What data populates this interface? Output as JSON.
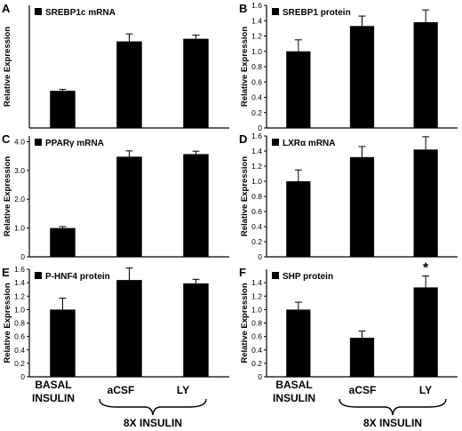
{
  "figure": {
    "bottom_labels": {
      "basal_line1": "BASAL",
      "basal_line2": "INSULIN",
      "acsf": "aCSF",
      "ly": "LY",
      "group": "8X INSULIN"
    }
  },
  "chart_data": [
    {
      "panel": "A",
      "type": "bar",
      "legend": "SREBP1c mRNA",
      "categories": [
        "BASAL INSULIN",
        "aCSF",
        "LY"
      ],
      "values": [
        1.0,
        2.33,
        2.4
      ],
      "errors": [
        0.04,
        0.2,
        0.1
      ],
      "ylabel": "Relative Expression",
      "ylim": [
        0,
        3.3
      ],
      "yticks": [],
      "bar_color": "#000000",
      "annotations": []
    },
    {
      "panel": "B",
      "type": "bar",
      "legend": "SREBP1 protein",
      "categories": [
        "BASAL INSULIN",
        "aCSF",
        "LY"
      ],
      "values": [
        1.0,
        1.33,
        1.38
      ],
      "errors": [
        0.15,
        0.13,
        0.16
      ],
      "ylabel": "Relative Expression",
      "ylim": [
        0,
        1.6
      ],
      "yticks": [
        "0",
        "0.2",
        "0.4",
        "0.6",
        "0.8",
        "1.0",
        "1.2",
        "1.4",
        "1.6"
      ],
      "bar_color": "#000000",
      "annotations": []
    },
    {
      "panel": "C",
      "type": "bar",
      "legend": "PPARγ mRNA",
      "categories": [
        "BASAL INSULIN",
        "aCSF",
        "LY"
      ],
      "values": [
        1.0,
        3.48,
        3.57
      ],
      "errors": [
        0.05,
        0.2,
        0.1
      ],
      "ylabel": "Relative Expression",
      "ylim": [
        0,
        4.2
      ],
      "yticks": [
        "0",
        "1.0",
        "2.0",
        "3.0",
        "4.0"
      ],
      "bar_color": "#000000",
      "annotations": []
    },
    {
      "panel": "D",
      "type": "bar",
      "legend": "LXRα mRNA",
      "categories": [
        "BASAL INSULIN",
        "aCSF",
        "LY"
      ],
      "values": [
        1.0,
        1.32,
        1.42
      ],
      "errors": [
        0.15,
        0.14,
        0.17
      ],
      "ylabel": "Relative Expression",
      "ylim": [
        0,
        1.6
      ],
      "yticks": [
        "0",
        "0.2",
        "0.4",
        "0.6",
        "0.8",
        "1.0",
        "1.2",
        "1.4",
        "1.6"
      ],
      "bar_color": "#000000",
      "annotations": []
    },
    {
      "panel": "E",
      "type": "bar",
      "legend": "P-HNF4 protein",
      "categories": [
        "BASAL INSULIN",
        "aCSF",
        "LY"
      ],
      "values": [
        1.0,
        1.44,
        1.39
      ],
      "errors": [
        0.17,
        0.18,
        0.06
      ],
      "ylabel": "Relative Expression",
      "ylim": [
        0,
        1.6
      ],
      "yticks": [
        "0",
        "0.2",
        "0.4",
        "0.6",
        "0.8",
        "1.0",
        "1.2",
        "1.4",
        "1.6"
      ],
      "bar_color": "#000000",
      "annotations": []
    },
    {
      "panel": "F",
      "type": "bar",
      "legend": "SHP protein",
      "categories": [
        "BASAL INSULIN",
        "aCSF",
        "LY"
      ],
      "values": [
        1.0,
        0.58,
        1.33
      ],
      "errors": [
        0.11,
        0.1,
        0.17
      ],
      "ylabel": "Relative Expression",
      "ylim": [
        0,
        1.6
      ],
      "yticks": [
        "0",
        "0.2",
        "0.4",
        "0.6",
        "0.8",
        "1.0",
        "1.2",
        "1.4"
      ],
      "bar_color": "#000000",
      "annotations": [
        {
          "index": 2,
          "text": "*"
        }
      ]
    }
  ]
}
